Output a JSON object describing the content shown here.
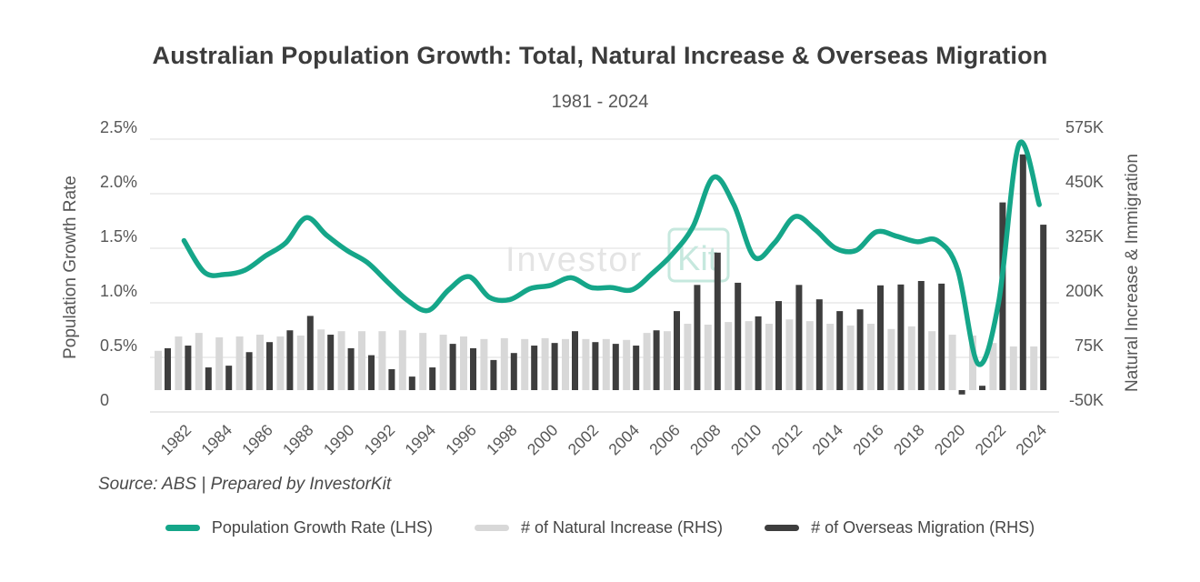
{
  "title": "Australian Population Growth: Total, Natural Increase & Overseas Migration",
  "subtitle": "1981 - 2024",
  "source_note": "Source: ABS | Prepared by InvestorKit",
  "watermark": {
    "text_gray": "Investor",
    "text_teal": "Kit"
  },
  "colors": {
    "line": "#15a689",
    "natural_bar": "#d8d8d8",
    "migration_bar": "#3e3e3e",
    "grid": "#e4e4e4",
    "axis_line": "#d9d9d9",
    "axis_text": "#575757",
    "watermark_gray": "#e4e4e4",
    "watermark_teal": "#c6e8de"
  },
  "axes": {
    "left_title": "Population Growth Rate",
    "right_title": "Natural Increase & Immigration",
    "left_ticks": [
      {
        "label": "2.5%",
        "value": 2.5
      },
      {
        "label": "2.0%",
        "value": 2.0
      },
      {
        "label": "1.5%",
        "value": 1.5
      },
      {
        "label": "1.0%",
        "value": 1.0
      },
      {
        "label": "0.5%",
        "value": 0.5
      },
      {
        "label": "0",
        "value": 0
      }
    ],
    "right_ticks": [
      {
        "label": "575K",
        "value": 575
      },
      {
        "label": "450K",
        "value": 450
      },
      {
        "label": "325K",
        "value": 325
      },
      {
        "label": "200K",
        "value": 200
      },
      {
        "label": "75K",
        "value": 75
      },
      {
        "label": "-50K",
        "value": -50
      }
    ],
    "x_tick_years": [
      1982,
      1984,
      1986,
      1988,
      1990,
      1992,
      1994,
      1996,
      1998,
      2000,
      2002,
      2004,
      2006,
      2008,
      2010,
      2012,
      2014,
      2016,
      2018,
      2020,
      2022,
      2024
    ]
  },
  "legend": [
    {
      "label": "Population Growth Rate (LHS)",
      "swatch_color_key": "line"
    },
    {
      "label": "# of Natural Increase (RHS)",
      "swatch_color_key": "natural_bar"
    },
    {
      "label": "# of Overseas Migration (RHS)",
      "swatch_color_key": "migration_bar"
    }
  ],
  "chart_data": {
    "type": "combo-bar-line",
    "title": "Australian Population Growth: Total, Natural Increase & Overseas Migration",
    "subtitle": "1981 - 2024",
    "grid": true,
    "left_axis": {
      "label": "Population Growth Rate",
      "unit": "%",
      "range": [
        0,
        2.5
      ]
    },
    "right_axis": {
      "label": "Natural Increase & Immigration",
      "unit": "thousands",
      "range": [
        -50,
        575
      ]
    },
    "x_years": [
      1981,
      1982,
      1983,
      1984,
      1985,
      1986,
      1987,
      1988,
      1989,
      1990,
      1991,
      1992,
      1993,
      1994,
      1995,
      1996,
      1997,
      1998,
      1999,
      2000,
      2001,
      2002,
      2003,
      2004,
      2005,
      2006,
      2007,
      2008,
      2009,
      2010,
      2011,
      2012,
      2013,
      2014,
      2015,
      2016,
      2017,
      2018,
      2019,
      2020,
      2021,
      2022,
      2023,
      2024
    ],
    "series": [
      {
        "name": "Population Growth Rate (LHS)",
        "type": "line",
        "axis": "left",
        "unit": "%",
        "values": [
          null,
          1.57,
          1.28,
          1.26,
          1.3,
          1.43,
          1.55,
          1.78,
          1.62,
          1.48,
          1.37,
          1.19,
          1.02,
          0.93,
          1.12,
          1.24,
          1.05,
          1.03,
          1.13,
          1.16,
          1.23,
          1.14,
          1.14,
          1.12,
          1.27,
          1.45,
          1.7,
          2.15,
          1.9,
          1.42,
          1.55,
          1.79,
          1.67,
          1.5,
          1.48,
          1.65,
          1.61,
          1.56,
          1.57,
          1.3,
          0.44,
          1.0,
          2.45,
          1.9
        ]
      },
      {
        "name": "# of Natural Increase (RHS)",
        "type": "bar",
        "axis": "right",
        "unit": "thousands",
        "values": [
          90,
          123,
          131,
          121,
          123,
          127,
          123,
          125,
          139,
          135,
          135,
          135,
          137,
          131,
          127,
          123,
          117,
          119,
          117,
          119,
          117,
          117,
          117,
          115,
          131,
          135,
          152,
          150,
          156,
          158,
          152,
          162,
          158,
          152,
          148,
          152,
          140,
          146,
          135,
          127,
          125,
          108,
          100,
          100
        ]
      },
      {
        "name": "# of Overseas Migration (RHS)",
        "type": "bar",
        "axis": "right",
        "unit": "thousands",
        "values": [
          96,
          102,
          52,
          56,
          87,
          110,
          137,
          170,
          127,
          96,
          80,
          48,
          31,
          52,
          106,
          96,
          69,
          85,
          102,
          108,
          135,
          110,
          106,
          102,
          137,
          181,
          241,
          315,
          246,
          169,
          204,
          241,
          208,
          181,
          185,
          240,
          242,
          250,
          244,
          -10,
          10,
          430,
          540,
          379
        ]
      }
    ]
  }
}
